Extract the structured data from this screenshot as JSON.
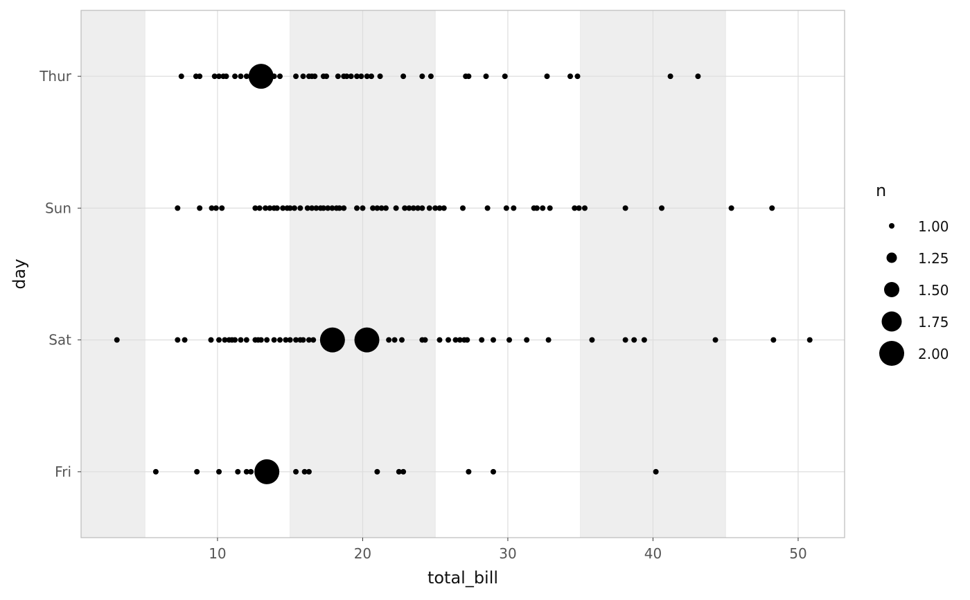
{
  "chart_data": {
    "type": "scatter",
    "xlabel": "total_bill",
    "ylabel": "day",
    "xlim": [
      0.6,
      53.2
    ],
    "x_ticks": [
      10,
      20,
      30,
      40,
      50
    ],
    "categories": [
      "Fri",
      "Sat",
      "Sun",
      "Thur"
    ],
    "background_bands": [
      [
        0.6,
        5
      ],
      [
        15,
        25
      ],
      [
        35,
        45
      ]
    ],
    "grid": true,
    "colors": {
      "point": "#000000",
      "band": "#eeeeee",
      "grid": "#dddddd",
      "border": "#bbbbbb"
    },
    "size_legend": {
      "title": "n",
      "entries": [
        {
          "value": 1.0,
          "label": "1.00"
        },
        {
          "value": 1.25,
          "label": "1.25"
        },
        {
          "value": 1.5,
          "label": "1.50"
        },
        {
          "value": 1.75,
          "label": "1.75"
        },
        {
          "value": 2.0,
          "label": "2.00"
        }
      ],
      "placement": "right"
    },
    "series": [
      {
        "category": "Thur",
        "points": [
          [
            7.51,
            1
          ],
          [
            8.52,
            1
          ],
          [
            8.77,
            1
          ],
          [
            9.8,
            1
          ],
          [
            10.1,
            1
          ],
          [
            10.4,
            1
          ],
          [
            10.6,
            1
          ],
          [
            11.2,
            1
          ],
          [
            11.6,
            1
          ],
          [
            12.0,
            1
          ],
          [
            12.4,
            1
          ],
          [
            13.0,
            2
          ],
          [
            13.9,
            1
          ],
          [
            14.3,
            1
          ],
          [
            15.4,
            1
          ],
          [
            15.9,
            1
          ],
          [
            16.3,
            1
          ],
          [
            16.5,
            1
          ],
          [
            16.7,
            1
          ],
          [
            17.3,
            1
          ],
          [
            17.5,
            1
          ],
          [
            18.3,
            1
          ],
          [
            18.7,
            1
          ],
          [
            18.9,
            1
          ],
          [
            19.2,
            1
          ],
          [
            19.6,
            1
          ],
          [
            19.9,
            1
          ],
          [
            20.3,
            1
          ],
          [
            20.6,
            1
          ],
          [
            21.2,
            1
          ],
          [
            22.8,
            1
          ],
          [
            24.1,
            1
          ],
          [
            24.7,
            1
          ],
          [
            27.1,
            1
          ],
          [
            27.3,
            1
          ],
          [
            28.5,
            1
          ],
          [
            29.8,
            1
          ],
          [
            32.7,
            1
          ],
          [
            34.3,
            1
          ],
          [
            34.8,
            1
          ],
          [
            41.2,
            1
          ],
          [
            43.1,
            1
          ]
        ]
      },
      {
        "category": "Sun",
        "points": [
          [
            7.25,
            1
          ],
          [
            8.77,
            1
          ],
          [
            9.6,
            1
          ],
          [
            9.9,
            1
          ],
          [
            10.3,
            1
          ],
          [
            12.6,
            1
          ],
          [
            12.9,
            1
          ],
          [
            13.3,
            1
          ],
          [
            13.6,
            1
          ],
          [
            13.9,
            1
          ],
          [
            14.1,
            1
          ],
          [
            14.5,
            1
          ],
          [
            14.8,
            1
          ],
          [
            15.0,
            1
          ],
          [
            15.3,
            1
          ],
          [
            15.7,
            1
          ],
          [
            16.2,
            1
          ],
          [
            16.5,
            1
          ],
          [
            16.8,
            1
          ],
          [
            17.1,
            1
          ],
          [
            17.3,
            1
          ],
          [
            17.6,
            1
          ],
          [
            17.9,
            1
          ],
          [
            18.2,
            1
          ],
          [
            18.4,
            1
          ],
          [
            18.7,
            1
          ],
          [
            19.6,
            1
          ],
          [
            20.0,
            1
          ],
          [
            20.7,
            1
          ],
          [
            21.0,
            1
          ],
          [
            21.3,
            1
          ],
          [
            21.6,
            1
          ],
          [
            22.3,
            1
          ],
          [
            22.9,
            1
          ],
          [
            23.2,
            1
          ],
          [
            23.5,
            1
          ],
          [
            23.8,
            1
          ],
          [
            24.1,
            1
          ],
          [
            24.6,
            1
          ],
          [
            25.0,
            1
          ],
          [
            25.3,
            1
          ],
          [
            25.6,
            1
          ],
          [
            26.9,
            1
          ],
          [
            28.6,
            1
          ],
          [
            29.9,
            1
          ],
          [
            30.4,
            1
          ],
          [
            31.8,
            1
          ],
          [
            32.0,
            1
          ],
          [
            32.4,
            1
          ],
          [
            32.9,
            1
          ],
          [
            34.6,
            1
          ],
          [
            34.9,
            1
          ],
          [
            35.3,
            1
          ],
          [
            38.1,
            1
          ],
          [
            40.6,
            1
          ],
          [
            45.4,
            1
          ],
          [
            48.2,
            1
          ]
        ]
      },
      {
        "category": "Sat",
        "points": [
          [
            3.07,
            1
          ],
          [
            7.25,
            1
          ],
          [
            7.74,
            1
          ],
          [
            9.55,
            1
          ],
          [
            10.1,
            1
          ],
          [
            10.5,
            1
          ],
          [
            10.8,
            1
          ],
          [
            11.0,
            1
          ],
          [
            11.2,
            1
          ],
          [
            11.6,
            1
          ],
          [
            12.0,
            1
          ],
          [
            12.6,
            1
          ],
          [
            12.8,
            1
          ],
          [
            13.0,
            1
          ],
          [
            13.4,
            1
          ],
          [
            13.9,
            1
          ],
          [
            14.3,
            1
          ],
          [
            14.7,
            1
          ],
          [
            15.0,
            1
          ],
          [
            15.4,
            1
          ],
          [
            15.7,
            1
          ],
          [
            15.9,
            1
          ],
          [
            16.3,
            1
          ],
          [
            16.6,
            1
          ],
          [
            17.3,
            1
          ],
          [
            17.92,
            2
          ],
          [
            18.3,
            1
          ],
          [
            20.2,
            1
          ],
          [
            20.29,
            2
          ],
          [
            21.8,
            1
          ],
          [
            22.2,
            1
          ],
          [
            22.7,
            1
          ],
          [
            24.1,
            1
          ],
          [
            24.3,
            1
          ],
          [
            25.3,
            1
          ],
          [
            25.9,
            1
          ],
          [
            26.4,
            1
          ],
          [
            26.7,
            1
          ],
          [
            27.0,
            1
          ],
          [
            27.2,
            1
          ],
          [
            28.2,
            1
          ],
          [
            29.0,
            1
          ],
          [
            30.1,
            1
          ],
          [
            31.3,
            1
          ],
          [
            32.8,
            1
          ],
          [
            35.8,
            1
          ],
          [
            38.1,
            1
          ],
          [
            38.7,
            1
          ],
          [
            39.4,
            1
          ],
          [
            44.3,
            1
          ],
          [
            48.3,
            1
          ],
          [
            50.8,
            1
          ]
        ]
      },
      {
        "category": "Fri",
        "points": [
          [
            5.75,
            1
          ],
          [
            8.58,
            1
          ],
          [
            10.1,
            1
          ],
          [
            11.4,
            1
          ],
          [
            12.0,
            1
          ],
          [
            12.3,
            1
          ],
          [
            13.4,
            2
          ],
          [
            15.4,
            1
          ],
          [
            16.0,
            1
          ],
          [
            16.3,
            1
          ],
          [
            21.0,
            1
          ],
          [
            22.5,
            1
          ],
          [
            22.8,
            1
          ],
          [
            27.3,
            1
          ],
          [
            29.0,
            1
          ],
          [
            40.2,
            1
          ]
        ]
      }
    ]
  }
}
